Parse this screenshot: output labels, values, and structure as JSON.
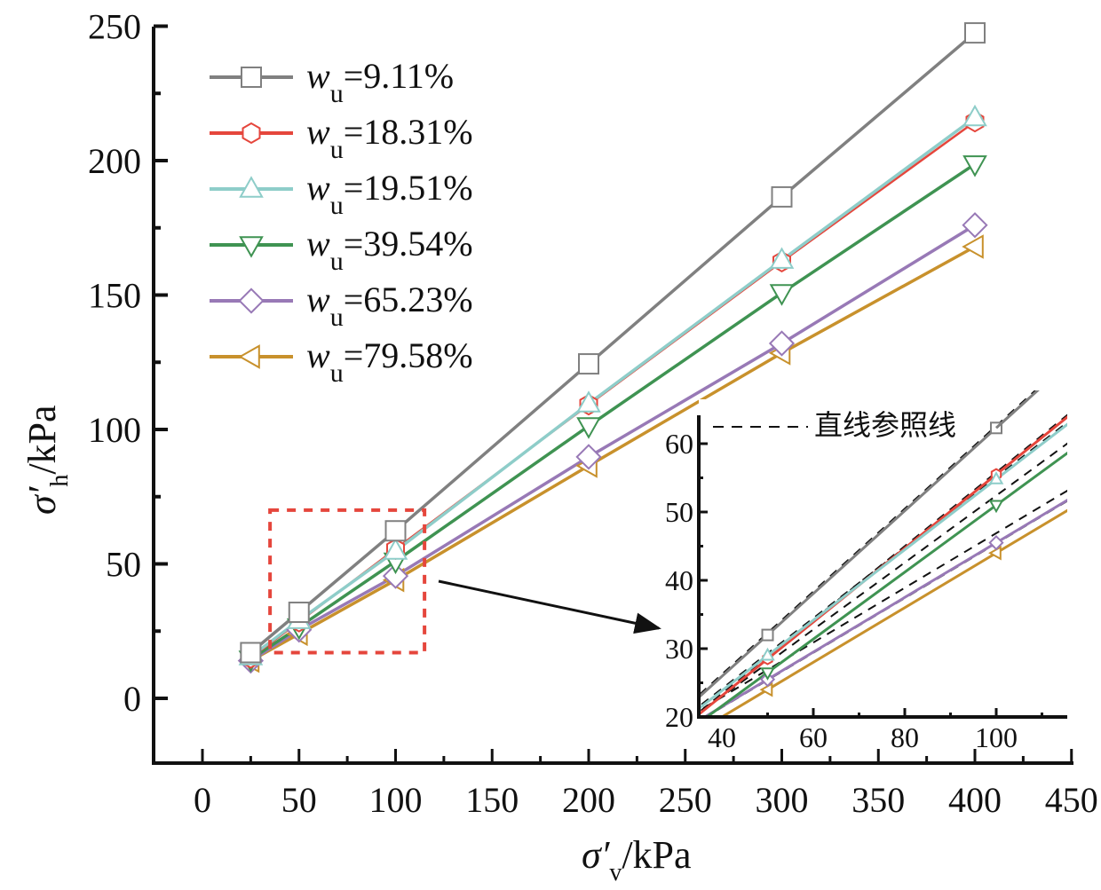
{
  "chart_data": {
    "type": "line",
    "title": "",
    "xlabel": {
      "main": "σ′",
      "sub": "v",
      "unit": "/kPa"
    },
    "ylabel": {
      "main": "σ′",
      "sub": "h",
      "unit": "/kPa"
    },
    "xlim": [
      -25,
      450
    ],
    "ylim": [
      -25,
      250
    ],
    "xticks": [
      0,
      50,
      100,
      150,
      200,
      250,
      300,
      350,
      400,
      450
    ],
    "yticks": [
      0,
      50,
      100,
      150,
      200,
      250
    ],
    "grid": false,
    "legend_position": "top-left",
    "x": [
      25,
      50,
      100,
      200,
      300,
      400
    ],
    "series": [
      {
        "name": "w_u=9.11%",
        "label_var": "w",
        "label_sub": "u",
        "label_val": "=9.11%",
        "color": "#808080",
        "marker": "square",
        "values": [
          17,
          32,
          62.3,
          124.4,
          186.5,
          247.5
        ]
      },
      {
        "name": "w_u=18.31%",
        "label_var": "w",
        "label_sub": "u",
        "label_val": "=18.31%",
        "color": "#e5463c",
        "marker": "hexagon",
        "values": [
          15,
          28.5,
          55.5,
          109.2,
          162.4,
          214.5
        ]
      },
      {
        "name": "w_u=19.51%",
        "label_var": "w",
        "label_sub": "u",
        "label_val": "=19.51%",
        "color": "#8ecdc9",
        "marker": "triangle-up",
        "values": [
          15.5,
          29,
          54.8,
          109.6,
          163,
          216
        ]
      },
      {
        "name": "w_u=39.54%",
        "label_var": "w",
        "label_sub": "u",
        "label_val": "=39.54%",
        "color": "#3f9352",
        "marker": "triangle-down",
        "values": [
          14.5,
          26.5,
          51,
          101.3,
          150.8,
          198.7
        ]
      },
      {
        "name": "w_u=65.23%",
        "label_var": "w",
        "label_sub": "u",
        "label_val": "=65.23%",
        "color": "#9879b6",
        "marker": "diamond",
        "values": [
          14,
          25.5,
          45.5,
          89.8,
          132,
          176
        ]
      },
      {
        "name": "w_u=79.58%",
        "label_var": "w",
        "label_sub": "u",
        "label_val": "=79.58%",
        "color": "#c8912c",
        "marker": "triangle-left",
        "values": [
          14,
          24,
          44,
          86.5,
          128.4,
          168
        ]
      }
    ],
    "zoom_box": {
      "x_range": [
        35,
        115
      ],
      "y_range": [
        17,
        70
      ],
      "color": "#e5463c",
      "style": "dashed"
    },
    "inset": {
      "xlim": [
        35,
        115
      ],
      "ylim": [
        20,
        64
      ],
      "xticks": [
        40,
        60,
        80,
        100
      ],
      "yticks": [
        20,
        30,
        40,
        50,
        60
      ],
      "reference_line_label": "直线参照线",
      "reference_line_style": "dashed black"
    }
  }
}
